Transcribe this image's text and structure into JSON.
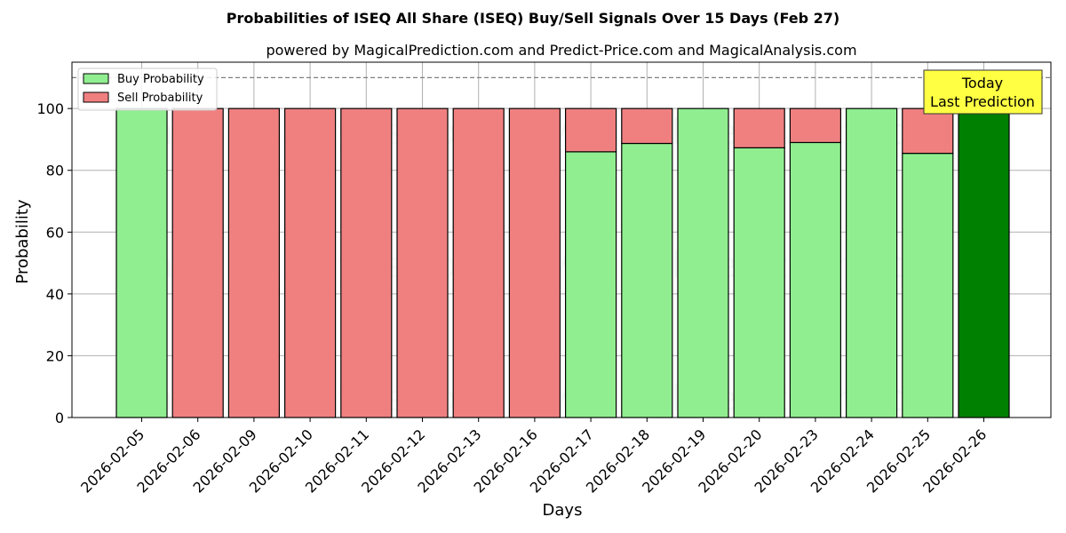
{
  "chart_data": {
    "type": "bar",
    "title": "Probabilities of ISEQ All Share (ISEQ) Buy/Sell Signals Over 15 Days (Feb 27)",
    "subtitle": "powered by MagicalPrediction.com and Predict-Price.com and MagicalAnalysis.com",
    "xlabel": "Days",
    "ylabel": "Probability",
    "ylim": [
      0,
      115
    ],
    "yticks": [
      0,
      20,
      40,
      60,
      80,
      100
    ],
    "grid": true,
    "legend_position": "top-left",
    "categories": [
      "2026-02-05",
      "2026-02-06",
      "2026-02-09",
      "2026-02-10",
      "2026-02-11",
      "2026-02-12",
      "2026-02-13",
      "2026-02-16",
      "2026-02-17",
      "2026-02-18",
      "2026-02-19",
      "2026-02-20",
      "2026-02-23",
      "2026-02-24",
      "2026-02-25",
      "2026-02-26"
    ],
    "series": [
      {
        "name": "Buy Probability",
        "color": "#90ee90",
        "values": [
          100,
          0,
          0,
          0,
          0,
          0,
          0,
          0,
          86,
          88.7,
          100,
          87.3,
          89,
          100,
          85.5,
          100
        ]
      },
      {
        "name": "Sell Probability",
        "color": "#f08080",
        "values": [
          0,
          100,
          100,
          100,
          100,
          100,
          100,
          100,
          14,
          11.3,
          0,
          12.7,
          11,
          0,
          14.5,
          0
        ]
      }
    ],
    "highlight": {
      "index": 15,
      "color": "#008000"
    },
    "reference_line": {
      "y": 110,
      "style": "dashed",
      "color": "#808080"
    },
    "annotation": {
      "text": [
        "Today",
        "Last Prediction"
      ],
      "background": "#ffff44"
    },
    "watermarks": [
      "MagicalAnalysis.com",
      "MagicalPrediction.com"
    ]
  }
}
